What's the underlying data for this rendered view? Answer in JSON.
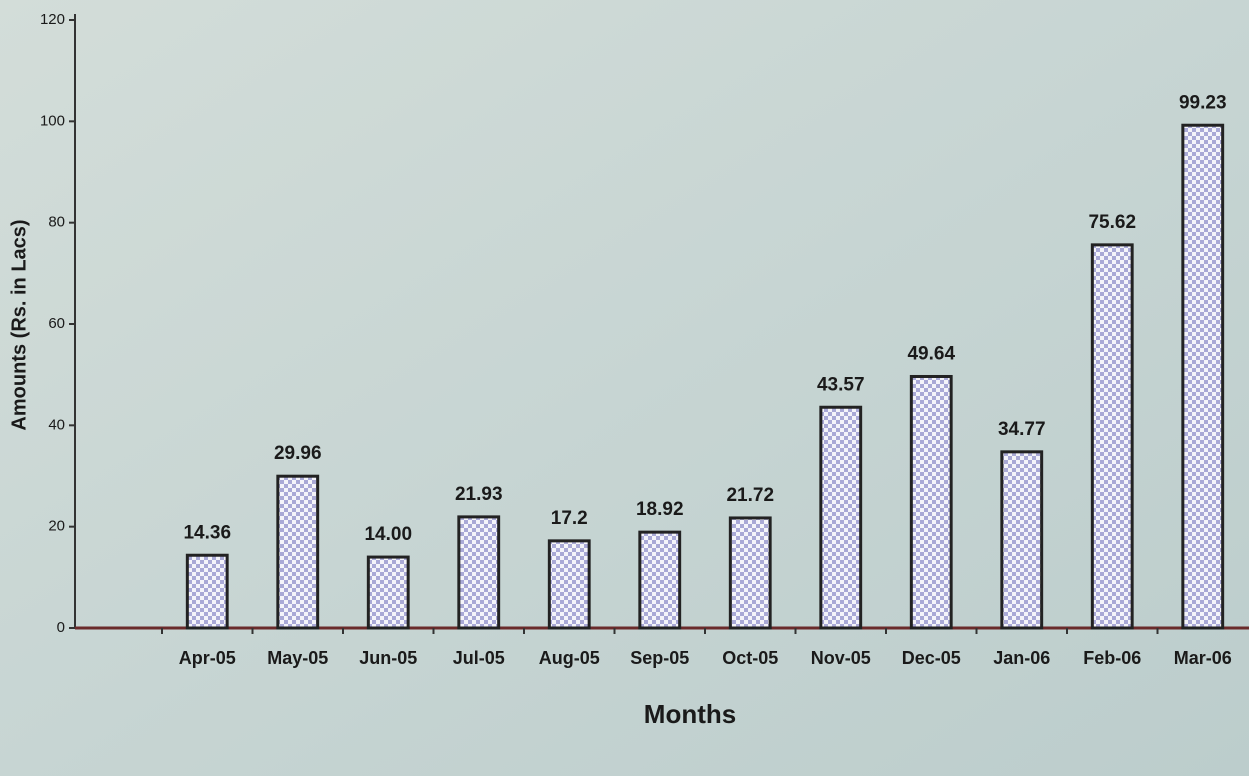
{
  "chart_data": {
    "type": "bar",
    "categories": [
      "Apr-05",
      "May-05",
      "Jun-05",
      "Jul-05",
      "Aug-05",
      "Sep-05",
      "Oct-05",
      "Nov-05",
      "Dec-05",
      "Jan-06",
      "Feb-06",
      "Mar-06"
    ],
    "values": [
      14.36,
      29.96,
      14.0,
      21.93,
      17.2,
      18.92,
      21.72,
      43.57,
      49.64,
      34.77,
      75.62,
      99.23
    ],
    "value_labels": [
      "14.36",
      "29.96",
      "14.00",
      "21.93",
      "17.2",
      "18.92",
      "21.72",
      "43.57",
      "49.64",
      "34.77",
      "75.62",
      "99.23"
    ],
    "color": "#a9a9d6",
    "xlabel": "Months",
    "ylabel": "Amounts (Rs. in Lacs)",
    "ylim": [
      0,
      120
    ],
    "yticks": [
      0,
      20,
      40,
      60,
      80,
      100,
      120
    ]
  }
}
